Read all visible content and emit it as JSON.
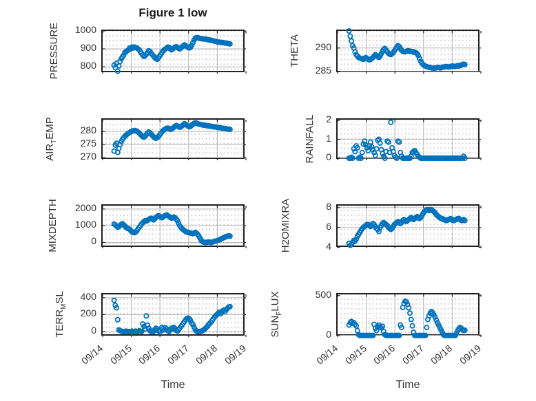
{
  "title": "Figure 1 low",
  "colors": {
    "marker": "#0072BD",
    "grid_major": "#b5b5b5",
    "grid_minor_dots": "#c9c9c9",
    "axis_box": "#212121",
    "tick_text": "#333333"
  },
  "x_axis": {
    "label": "Time",
    "tick_labels": [
      "09/14",
      "09/15",
      "09/16",
      "09/17",
      "09/18",
      "09/19"
    ],
    "tick_days": [
      0,
      1,
      2,
      3,
      4,
      5
    ],
    "lim_days": [
      0,
      5
    ]
  },
  "chart_data": [
    {
      "id": "pressure",
      "type": "scatter",
      "row": 0,
      "col": 0,
      "ylabel": "PRESSURE",
      "ylabel_parts": [
        {
          "t": "PRESSURE"
        }
      ],
      "yticks": [
        800,
        900,
        1000
      ],
      "ytick_labels": [
        "800",
        "900",
        "1000"
      ],
      "ylim": [
        762,
        1000
      ],
      "x_start_days": 0.4,
      "x_step_days": 0.0416667,
      "values": [
        810,
        795,
        820,
        775,
        805,
        830,
        845,
        855,
        865,
        880,
        885,
        890,
        895,
        905,
        900,
        910,
        905,
        910,
        908,
        905,
        900,
        895,
        885,
        875,
        865,
        858,
        862,
        870,
        880,
        890,
        885,
        875,
        868,
        860,
        852,
        845,
        842,
        848,
        858,
        868,
        878,
        888,
        895,
        900,
        905,
        910,
        908,
        900,
        895,
        898,
        905,
        910,
        912,
        908,
        903,
        900,
        905,
        912,
        918,
        922,
        918,
        912,
        908,
        905,
        910,
        920,
        935,
        950,
        960,
        963,
        962,
        960,
        958,
        957,
        956,
        955,
        955,
        954,
        952,
        950,
        950,
        948,
        947,
        945,
        943,
        942,
        940,
        938,
        938,
        937,
        936,
        935,
        934,
        933,
        932,
        930,
        929,
        928
      ]
    },
    {
      "id": "theta",
      "type": "scatter",
      "row": 0,
      "col": 1,
      "ylabel": "THETA",
      "ylabel_parts": [
        {
          "t": "THETA"
        }
      ],
      "yticks": [
        285,
        290
      ],
      "ytick_labels": [
        "285",
        "290"
      ],
      "ylim": [
        284.6,
        293.6
      ],
      "x_start_days": 0.4,
      "x_step_days": 0.0416667,
      "values": [
        293.6,
        292.5,
        291.5,
        290.5,
        290.0,
        289.2,
        288.6,
        288.3,
        288.0,
        287.9,
        287.8,
        287.7,
        287.6,
        287.8,
        288.0,
        287.8,
        287.6,
        287.5,
        287.6,
        287.8,
        288.0,
        288.3,
        288.6,
        288.4,
        288.2,
        288.0,
        288.3,
        288.8,
        289.3,
        289.7,
        289.9,
        289.6,
        289.2,
        288.9,
        288.7,
        288.6,
        288.8,
        289.0,
        289.4,
        289.8,
        290.2,
        290.5,
        290.3,
        289.9,
        289.5,
        289.3,
        289.2,
        289.2,
        289.3,
        289.4,
        289.4,
        289.3,
        289.3,
        289.2,
        289.2,
        289.1,
        289.0,
        288.8,
        288.4,
        287.8,
        287.2,
        286.8,
        286.5,
        286.3,
        286.2,
        286.1,
        286.0,
        285.9,
        285.9,
        285.8,
        285.8,
        285.7,
        285.8,
        285.8,
        285.9,
        285.9,
        285.8,
        285.8,
        285.9,
        286.0,
        286.0,
        286.1,
        286.1,
        286.0,
        286.0,
        286.1,
        286.2,
        286.2,
        286.1,
        286.1,
        286.2,
        286.3,
        286.2,
        286.3,
        286.4,
        286.5,
        286.6,
        286.5
      ]
    },
    {
      "id": "air_temp",
      "type": "scatter",
      "row": 1,
      "col": 0,
      "ylabel": "AIR_TEMP",
      "ylabel_parts": [
        {
          "t": "AIR"
        },
        {
          "t": "T",
          "sub": true
        },
        {
          "t": "EMP"
        }
      ],
      "yticks": [
        270,
        275,
        280
      ],
      "ytick_labels": [
        "270",
        "275",
        "280"
      ],
      "ylim": [
        269,
        284.5
      ],
      "x_start_days": 0.4,
      "x_step_days": 0.0416667,
      "values": [
        272.5,
        274.8,
        275.5,
        272.0,
        273.5,
        275.0,
        276.2,
        277.0,
        277.6,
        278.2,
        278.6,
        279.0,
        279.3,
        279.6,
        279.9,
        280.1,
        280.3,
        280.4,
        280.3,
        280.1,
        279.8,
        279.4,
        278.9,
        278.4,
        278.0,
        277.8,
        278.2,
        278.8,
        279.4,
        279.8,
        279.5,
        279.0,
        278.5,
        278.0,
        277.6,
        277.4,
        277.6,
        278.0,
        278.6,
        279.2,
        279.8,
        280.3,
        280.7,
        281.0,
        281.2,
        281.3,
        281.1,
        280.8,
        280.9,
        281.2,
        281.6,
        282.0,
        282.3,
        282.1,
        281.8,
        281.6,
        281.8,
        282.2,
        282.6,
        283.0,
        282.7,
        282.3,
        282.0,
        281.8,
        282.0,
        282.4,
        282.8,
        283.1,
        283.3,
        283.2,
        283.0,
        282.8,
        282.7,
        282.6,
        282.5,
        282.4,
        282.4,
        282.3,
        282.2,
        282.1,
        282.1,
        282.0,
        281.9,
        281.8,
        281.8,
        281.7,
        281.6,
        281.5,
        281.5,
        281.4,
        281.3,
        281.2,
        281.2,
        281.1,
        281.0,
        280.9,
        280.9,
        280.8
      ]
    },
    {
      "id": "rainfall",
      "type": "scatter",
      "row": 1,
      "col": 1,
      "ylabel": "RAINFALL",
      "ylabel_parts": [
        {
          "t": "RAINFALL"
        }
      ],
      "yticks": [
        0,
        1,
        2
      ],
      "ytick_labels": [
        "0",
        "1",
        "2"
      ],
      "ylim": [
        -0.11,
        2.04
      ],
      "x_start_days": 0.4,
      "x_step_days": 0.0416667,
      "values": [
        0,
        0,
        0.05,
        0,
        0.5,
        0.35,
        0.65,
        0.55,
        0,
        0.05,
        0,
        0.3,
        0.75,
        0.9,
        0.7,
        0.55,
        0.4,
        0.65,
        0.85,
        0.6,
        0.45,
        0.3,
        0.15,
        0.5,
        0.95,
        1.0,
        0.8,
        0.45,
        0.25,
        0.1,
        0,
        0.35,
        0.9,
        0.85,
        0.3,
        1.9,
        0.55,
        0.35,
        0.15,
        0.05,
        0,
        0.9,
        0.85,
        0.3,
        0.1,
        0,
        0,
        0,
        0,
        0,
        0,
        0,
        0.1,
        0.3,
        0.35,
        0.4,
        0.3,
        0.2,
        0.1,
        0.05,
        0,
        0,
        0,
        0,
        0,
        0,
        0,
        0,
        0,
        0,
        0,
        0,
        0,
        0,
        0,
        0,
        0,
        0,
        0,
        0,
        0,
        0,
        0,
        0,
        0,
        0,
        0,
        0,
        0,
        0,
        0,
        0,
        0,
        0,
        0,
        0,
        0.1,
        0
      ]
    },
    {
      "id": "mixdepth",
      "type": "scatter",
      "row": 2,
      "col": 0,
      "ylabel": "MIXDEPTH",
      "ylabel_parts": [
        {
          "t": "MIXDEPTH"
        }
      ],
      "yticks": [
        0,
        1000,
        2000
      ],
      "ytick_labels": [
        "0",
        "1000",
        "2000"
      ],
      "ylim": [
        -350,
        2200
      ],
      "x_start_days": 0.4,
      "x_step_days": 0.0416667,
      "values": [
        1100,
        1050,
        980,
        900,
        950,
        1020,
        1080,
        1120,
        1050,
        980,
        900,
        850,
        820,
        780,
        700,
        640,
        600,
        580,
        620,
        700,
        800,
        900,
        1000,
        1100,
        1180,
        1250,
        1300,
        1280,
        1320,
        1380,
        1420,
        1450,
        1400,
        1350,
        1420,
        1500,
        1550,
        1600,
        1580,
        1520,
        1480,
        1520,
        1580,
        1620,
        1650,
        1600,
        1550,
        1500,
        1450,
        1480,
        1520,
        1480,
        1400,
        1300,
        1150,
        1000,
        900,
        820,
        760,
        700,
        650,
        620,
        600,
        580,
        560,
        540,
        520,
        560,
        600,
        560,
        480,
        380,
        250,
        120,
        50,
        20,
        0,
        0,
        10,
        30,
        20,
        0,
        10,
        40,
        60,
        80,
        100,
        120,
        150,
        180,
        220,
        260,
        290,
        320,
        350,
        380,
        400,
        380
      ]
    },
    {
      "id": "h2omixra",
      "type": "scatter",
      "row": 2,
      "col": 1,
      "ylabel": "H2OMIXRA",
      "ylabel_parts": [
        {
          "t": "H2OMIXRA"
        }
      ],
      "yticks": [
        4,
        6,
        8
      ],
      "ytick_labels": [
        "4",
        "6",
        "8"
      ],
      "ylim": [
        3.9,
        8.2
      ],
      "x_start_days": 0.4,
      "x_step_days": 0.0416667,
      "values": [
        4.4,
        4.2,
        4.3,
        4.5,
        4.7,
        4.6,
        4.8,
        5.1,
        5.3,
        5.5,
        5.7,
        5.9,
        6.0,
        6.1,
        6.2,
        6.3,
        6.3,
        6.2,
        6.1,
        6.2,
        6.4,
        6.3,
        6.1,
        5.9,
        5.8,
        5.6,
        6.0,
        6.2,
        6.4,
        6.5,
        6.4,
        6.3,
        6.2,
        6.0,
        5.9,
        5.8,
        5.9,
        6.1,
        6.3,
        6.4,
        6.5,
        6.6,
        6.5,
        6.4,
        6.5,
        6.7,
        6.8,
        6.7,
        6.6,
        6.7,
        6.8,
        6.9,
        7.0,
        6.9,
        6.8,
        6.9,
        7.0,
        7.1,
        7.0,
        6.9,
        7.0,
        7.2,
        7.4,
        7.6,
        7.7,
        7.8,
        7.8,
        7.7,
        7.8,
        7.8,
        7.7,
        7.6,
        7.5,
        7.3,
        7.2,
        7.1,
        7.0,
        6.9,
        6.9,
        6.8,
        6.8,
        6.7,
        6.7,
        6.8,
        6.8,
        6.9,
        6.8,
        6.7,
        6.7,
        6.8,
        6.8,
        6.9,
        6.9,
        6.8,
        6.7,
        6.7,
        6.8,
        6.7
      ]
    },
    {
      "id": "terr_msl",
      "type": "scatter",
      "row": 3,
      "col": 0,
      "ylabel": "TERR_M_SL",
      "ylabel_parts": [
        {
          "t": "TERR"
        },
        {
          "t": "M",
          "sub": true
        },
        {
          "t": "SL"
        }
      ],
      "yticks": [
        0,
        200,
        400
      ],
      "ytick_labels": [
        "0",
        "200",
        "400"
      ],
      "ylim": [
        -65,
        440
      ],
      "x_start_days": 0.4,
      "x_step_days": 0.0416667,
      "values": [
        370,
        310,
        280,
        140,
        20,
        10,
        5,
        0,
        0,
        0,
        5,
        0,
        0,
        0,
        0,
        5,
        0,
        0,
        5,
        0,
        0,
        10,
        5,
        0,
        90,
        60,
        30,
        185,
        75,
        40,
        10,
        0,
        5,
        0,
        20,
        40,
        30,
        10,
        0,
        5,
        50,
        35,
        20,
        45,
        30,
        10,
        0,
        20,
        40,
        30,
        50,
        35,
        15,
        5,
        25,
        40,
        60,
        80,
        100,
        120,
        140,
        155,
        160,
        150,
        130,
        100,
        80,
        50,
        20,
        5,
        0,
        0,
        0,
        5,
        10,
        20,
        30,
        45,
        60,
        80,
        95,
        110,
        130,
        150,
        170,
        185,
        200,
        215,
        230,
        210,
        225,
        245,
        255,
        240,
        260,
        275,
        290,
        295
      ]
    },
    {
      "id": "sun_flux",
      "type": "scatter",
      "row": 3,
      "col": 1,
      "ylabel": "SUN_FLUX",
      "ylabel_parts": [
        {
          "t": "SUN"
        },
        {
          "t": "F",
          "sub": true
        },
        {
          "t": "LUX"
        }
      ],
      "yticks": [
        0,
        500
      ],
      "ytick_labels": [
        "0",
        "500"
      ],
      "ylim": [
        -20,
        515
      ],
      "x_start_days": 0.4,
      "x_step_days": 0.0416667,
      "values": [
        130,
        160,
        175,
        150,
        160,
        140,
        120,
        60,
        10,
        0,
        0,
        0,
        0,
        0,
        0,
        0,
        0,
        0,
        0,
        0,
        0,
        140,
        90,
        60,
        110,
        130,
        105,
        95,
        115,
        50,
        10,
        0,
        0,
        0,
        0,
        0,
        0,
        0,
        0,
        0,
        0,
        0,
        0,
        130,
        100,
        350,
        400,
        430,
        420,
        390,
        345,
        280,
        200,
        120,
        40,
        0,
        0,
        0,
        0,
        0,
        0,
        0,
        0,
        0,
        0,
        100,
        200,
        245,
        280,
        300,
        285,
        260,
        230,
        195,
        160,
        130,
        100,
        70,
        40,
        10,
        0,
        0,
        0,
        0,
        0,
        0,
        0,
        0,
        0,
        0,
        30,
        60,
        85,
        100,
        90,
        70,
        60,
        65
      ]
    }
  ]
}
